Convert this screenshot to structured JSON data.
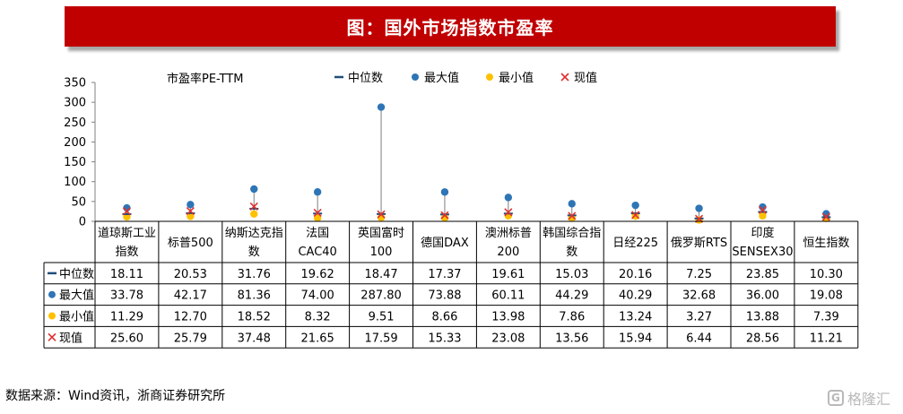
{
  "title": "图：国外市场指数市盈率",
  "source": "数据来源：Wind资讯，浙商证券研究所",
  "watermark": {
    "text": "格隆汇",
    "logo": "G"
  },
  "chart_data": {
    "type": "scatter",
    "ylabel": "市盈率PE-TTM",
    "ylim": [
      0,
      350
    ],
    "yticks": [
      0,
      50,
      100,
      150,
      200,
      250,
      300,
      350
    ],
    "categories": [
      [
        "道琼斯工业",
        "指数"
      ],
      [
        "标普500"
      ],
      [
        "纳斯达克指",
        "数"
      ],
      [
        "法国",
        "CAC40"
      ],
      [
        "英国富时",
        "100"
      ],
      [
        "德国DAX"
      ],
      [
        "澳洲标普",
        "200"
      ],
      [
        "韩国综合指",
        "数"
      ],
      [
        "日经225"
      ],
      [
        "俄罗斯RTS"
      ],
      [
        "印度",
        "SENSEX30"
      ],
      [
        "恒生指数"
      ]
    ],
    "series": [
      {
        "name": "中位数",
        "marker": "dash",
        "color": "#1f4e79",
        "values": [
          18.11,
          20.53,
          31.76,
          19.62,
          18.47,
          17.37,
          19.61,
          15.03,
          20.16,
          7.25,
          23.85,
          10.3
        ],
        "labels": [
          "18.11",
          "20.53",
          "31.76",
          "19.62",
          "18.47",
          "17.37",
          "19.61",
          "15.03",
          "20.16",
          "7.25",
          "23.85",
          "10.30"
        ]
      },
      {
        "name": "最大值",
        "marker": "circle",
        "color": "#2e75b6",
        "values": [
          33.78,
          42.17,
          81.36,
          74.0,
          287.8,
          73.88,
          60.11,
          44.29,
          40.29,
          32.68,
          36.0,
          19.08
        ],
        "labels": [
          "33.78",
          "42.17",
          "81.36",
          "74.00",
          "287.80",
          "73.88",
          "60.11",
          "44.29",
          "40.29",
          "32.68",
          "36.00",
          "19.08"
        ]
      },
      {
        "name": "最小值",
        "marker": "circle",
        "color": "#ffc000",
        "values": [
          11.29,
          12.7,
          18.52,
          8.32,
          9.51,
          8.66,
          13.98,
          7.86,
          13.24,
          3.27,
          13.88,
          7.39
        ],
        "labels": [
          "11.29",
          "12.70",
          "18.52",
          "8.32",
          "9.51",
          "8.66",
          "13.98",
          "7.86",
          "13.24",
          "3.27",
          "13.88",
          "7.39"
        ]
      },
      {
        "name": "现值",
        "marker": "x",
        "color": "#e03030",
        "values": [
          25.6,
          25.79,
          37.48,
          21.65,
          17.59,
          15.33,
          23.08,
          13.56,
          15.94,
          6.44,
          28.56,
          11.21
        ],
        "labels": [
          "25.60",
          "25.79",
          "37.48",
          "21.65",
          "17.59",
          "15.33",
          "23.08",
          "13.56",
          "15.94",
          "6.44",
          "28.56",
          "11.21"
        ]
      }
    ],
    "high_low_lines": true,
    "legend": "top",
    "grid": false,
    "data_table": true
  }
}
